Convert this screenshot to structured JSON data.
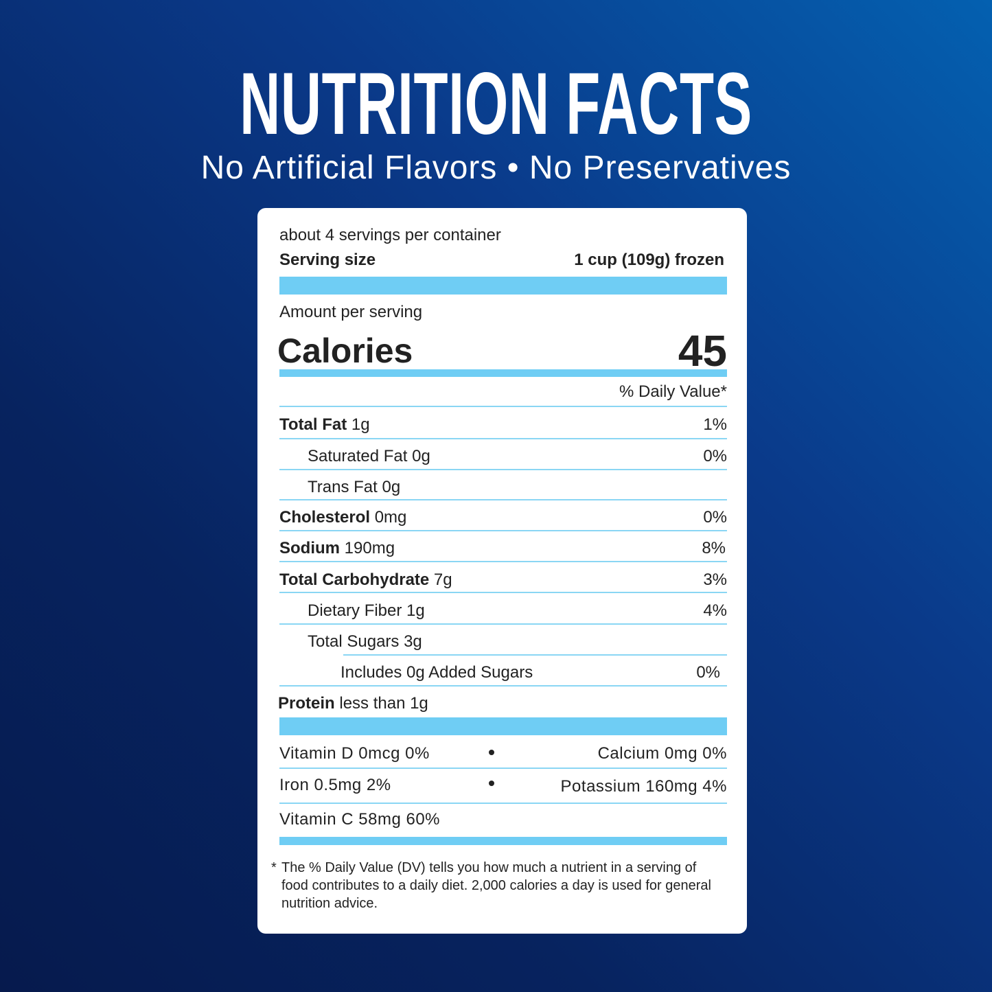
{
  "header": {
    "title": "NUTRITION FACTS",
    "subtitle": "No Artificial Flavors • No Preservatives"
  },
  "label": {
    "servings": "about 4 servings per container",
    "serving_size_label": "Serving size",
    "serving_size": "1 cup (109g) frozen",
    "amount_per_serving": "Amount per serving",
    "calories_label": "Calories",
    "calories": "45",
    "daily_value_header": "% Daily Value*",
    "nutrients": [
      {
        "name": "Total Fat",
        "amount": "1g",
        "dv": "1%"
      },
      {
        "name": "Saturated Fat",
        "amount": "0g",
        "dv": "0%"
      },
      {
        "name": "Trans Fat",
        "amount": "0g"
      },
      {
        "name": "Cholesterol",
        "amount": "0mg",
        "dv": "0%"
      },
      {
        "name": "Sodium",
        "amount": "190mg",
        "dv": "8%"
      },
      {
        "name": "Total Carbohydrate",
        "amount": "7g",
        "dv": "3%"
      },
      {
        "name": "Dietary Fiber",
        "amount": "1g",
        "dv": "4%"
      },
      {
        "name": "Total Sugars",
        "amount": "3g"
      },
      {
        "name": "Includes 0g Added Sugars",
        "dv": "0%"
      },
      {
        "name": "Protein",
        "amount": "less than 1g"
      }
    ],
    "vitamins": [
      [
        "Vitamin D 0mcg 0%",
        "Calcium 0mg 0%"
      ],
      [
        "Iron 0.5mg 2%",
        "Potassium 160mg 4%"
      ],
      [
        "Vitamin C 58mg 60%"
      ]
    ],
    "footnote": "The % Daily Value (DV) tells you how much a nutrient in a serving of food contributes to a daily diet. 2,000 calories a day is used for general nutrition advice."
  }
}
